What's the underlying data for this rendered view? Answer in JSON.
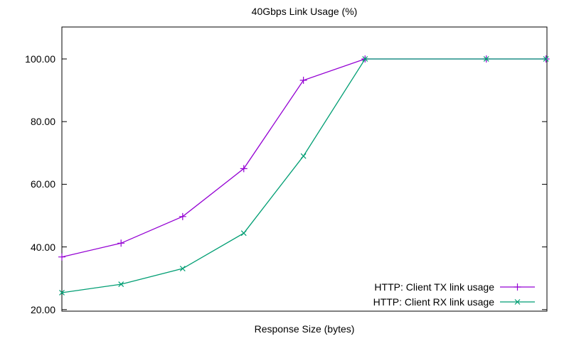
{
  "window": {
    "background": "#ffffff",
    "text_color": "#000000",
    "border_color": "#000000"
  },
  "chart_data": {
    "type": "line",
    "title": "40Gbps Link Usage (%)",
    "xlabel": "Response Size (bytes)",
    "ylabel": "",
    "grid": false,
    "x_tick_labels_visible": false,
    "legend_position": "bottom-right-inside",
    "ylim": [
      19.5,
      110.2
    ],
    "yticks": [
      {
        "value": 20,
        "label": "20.00"
      },
      {
        "value": 40,
        "label": "40.00"
      },
      {
        "value": 60,
        "label": "60.00"
      },
      {
        "value": 80,
        "label": "80.00"
      },
      {
        "value": 100,
        "label": "100.00"
      }
    ],
    "series": [
      {
        "name": "HTTP: Client TX link usage",
        "color": "#9400d3",
        "marker": "plus",
        "x_frac": [
          0.0,
          0.122,
          0.249,
          0.375,
          0.498,
          0.625,
          0.875,
          0.998
        ],
        "values": [
          36.8,
          41.2,
          49.7,
          65.0,
          93.2,
          100.0,
          100.0,
          100.0
        ]
      },
      {
        "name": "HTTP: Client RX link usage",
        "color": "#009e73",
        "marker": "cross",
        "x_frac": [
          0.0,
          0.122,
          0.249,
          0.375,
          0.498,
          0.625,
          0.875,
          0.998
        ],
        "values": [
          25.4,
          28.1,
          33.1,
          44.4,
          69.0,
          100.0,
          100.0,
          100.0
        ]
      }
    ]
  }
}
